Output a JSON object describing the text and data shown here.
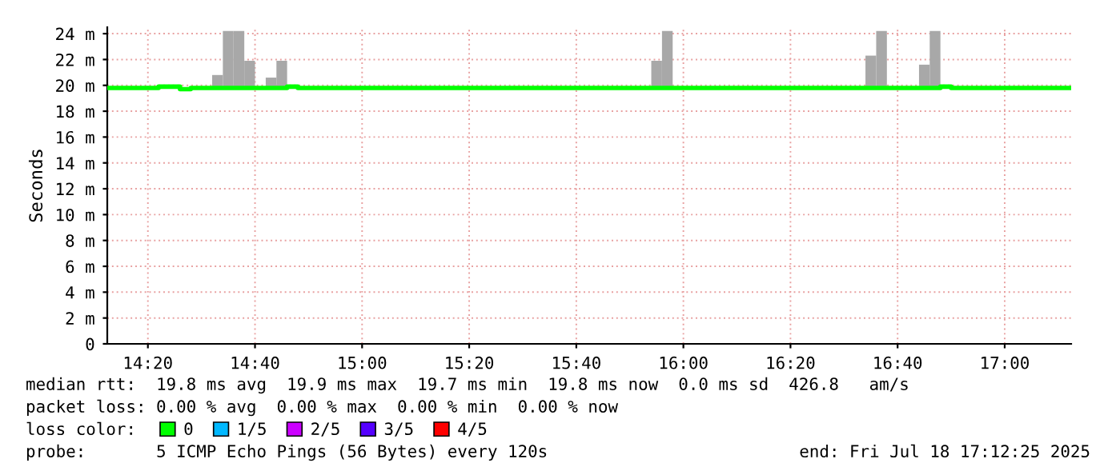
{
  "chart_data": {
    "type": "step",
    "ylabel": "Seconds",
    "xlim": [
      14.2069,
      17.2069
    ],
    "xticks": [
      {
        "value": 14.3333,
        "label": "14:20"
      },
      {
        "value": 14.6667,
        "label": "14:40"
      },
      {
        "value": 15.0,
        "label": "15:00"
      },
      {
        "value": 15.3333,
        "label": "15:20"
      },
      {
        "value": 15.6667,
        "label": "15:40"
      },
      {
        "value": 16.0,
        "label": "16:00"
      },
      {
        "value": 16.3333,
        "label": "16:20"
      },
      {
        "value": 16.6667,
        "label": "16:40"
      },
      {
        "value": 17.0,
        "label": "17:00"
      }
    ],
    "ylim": [
      0,
      24.5
    ],
    "yticks": [
      0,
      {
        "value": 2,
        "label": "2 m"
      },
      {
        "value": 4,
        "label": "4 m"
      },
      {
        "value": 6,
        "label": "6 m"
      },
      {
        "value": 8,
        "label": "8 m"
      },
      {
        "value": 10,
        "label": "10 m"
      },
      {
        "value": 12,
        "label": "12 m"
      },
      {
        "value": 14,
        "label": "14 m"
      },
      {
        "value": 16,
        "label": "16 m"
      },
      {
        "value": 18,
        "label": "18 m"
      },
      {
        "value": 20,
        "label": "20 m"
      },
      {
        "value": 22,
        "label": "22 m"
      },
      {
        "value": 24,
        "label": "24 m"
      }
    ],
    "grid": true,
    "legend": "bottom",
    "legend_title": "loss color:",
    "series": [
      {
        "type": "bar",
        "color": "#a8a8a8",
        "x": [
          14.55,
          14.5833,
          14.6167,
          14.65,
          14.7167,
          14.75,
          15.9167,
          15.95,
          16.5833,
          16.6167,
          16.75,
          16.7833
        ],
        "base": [
          19.8,
          19.8,
          19.8,
          19.8,
          19.8,
          19.8,
          19.8,
          19.8,
          19.8,
          19.8,
          19.8,
          19.8
        ],
        "values": [
          1.0,
          4.4,
          4.4,
          2.1,
          0.8,
          2.1,
          2.1,
          4.4,
          2.5,
          4.4,
          1.8,
          4.4
        ]
      },
      {
        "name": "0",
        "color": "#00ff00",
        "x": [
          14.2069,
          14.3667,
          14.4333,
          14.4667,
          14.7667,
          14.8,
          16.8,
          16.8333,
          17.2069
        ],
        "values": [
          19.8,
          19.9,
          19.7,
          19.8,
          19.9,
          19.8,
          19.9,
          19.8,
          19.8
        ]
      },
      {
        "type": "step",
        "name": "1/5",
        "color": "#00b8ff"
      },
      {
        "type": "step",
        "name": "2/5",
        "color": "#cc00ff"
      },
      {
        "type": "step",
        "name": "3/5",
        "color": "#5500ff"
      },
      {
        "type": "step",
        "name": "4/5",
        "color": "#ff0000"
      }
    ],
    "annotations": [
      "median rtt:  19.8 ms avg  19.9 ms max  19.7 ms min  19.8 ms now  0.0 ms sd  426.8   am/s",
      "packet loss: 0.00 % avg  0.00 % max  0.00 % min  0.00 % now",
      "probe:       5 ICMP Echo Pings (56 Bytes) every 120s",
      "end: Fri Jul 18 17:12:25 2025"
    ]
  }
}
